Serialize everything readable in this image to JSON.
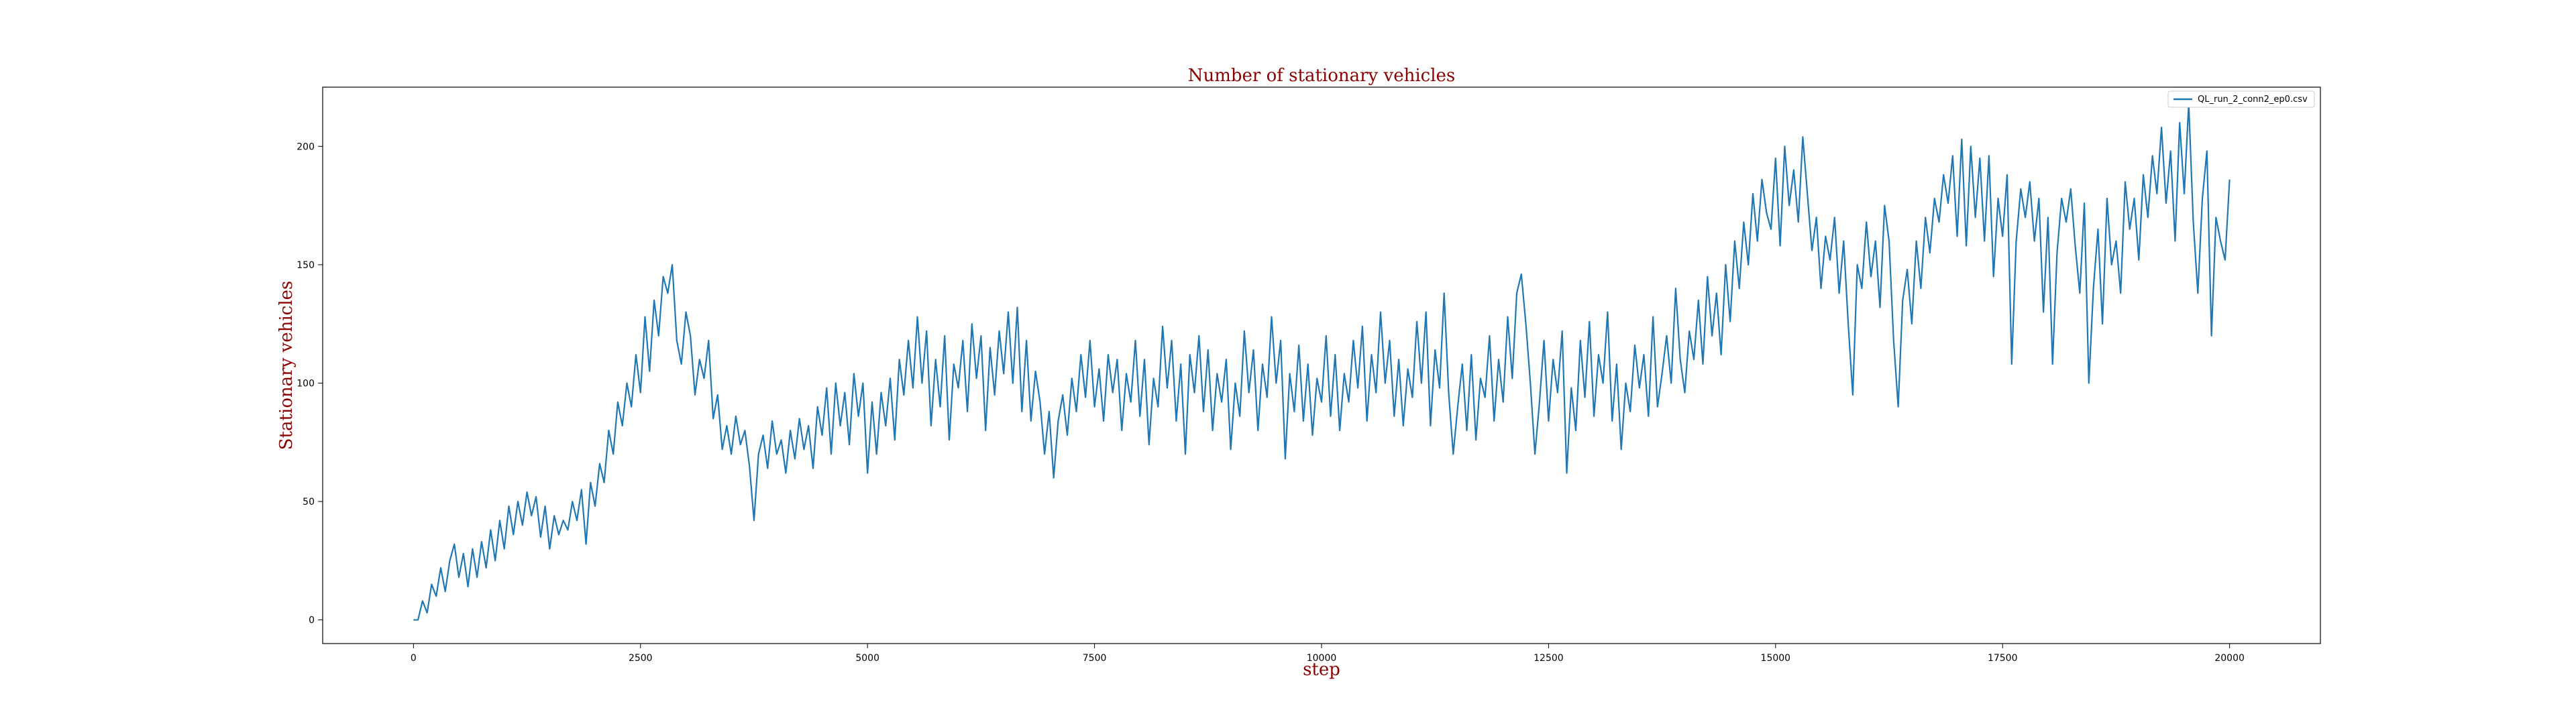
{
  "chart_data": {
    "type": "line",
    "title": "Number of stationary vehicles",
    "xlabel": "step",
    "ylabel": "Stationary vehicles",
    "xlim": [
      -1000,
      21000
    ],
    "ylim": [
      -10,
      225
    ],
    "xticks": [
      0,
      2500,
      5000,
      7500,
      10000,
      12500,
      15000,
      17500,
      20000
    ],
    "yticks": [
      0,
      50,
      100,
      150,
      200
    ],
    "grid": false,
    "legend_position": "top-right",
    "series": [
      {
        "name": "QL_run_2_conn2_ep0.csv",
        "color": "#1f77b4",
        "x": [
          0,
          50,
          100,
          150,
          200,
          250,
          300,
          350,
          400,
          450,
          500,
          550,
          600,
          650,
          700,
          750,
          800,
          850,
          900,
          950,
          1000,
          1050,
          1100,
          1150,
          1200,
          1250,
          1300,
          1350,
          1400,
          1450,
          1500,
          1550,
          1600,
          1650,
          1700,
          1750,
          1800,
          1850,
          1900,
          1950,
          2000,
          2050,
          2100,
          2150,
          2200,
          2250,
          2300,
          2350,
          2400,
          2450,
          2500,
          2550,
          2600,
          2650,
          2700,
          2750,
          2800,
          2850,
          2900,
          2950,
          3000,
          3050,
          3100,
          3150,
          3200,
          3250,
          3300,
          3350,
          3400,
          3450,
          3500,
          3550,
          3600,
          3650,
          3700,
          3750,
          3800,
          3850,
          3900,
          3950,
          4000,
          4050,
          4100,
          4150,
          4200,
          4250,
          4300,
          4350,
          4400,
          4450,
          4500,
          4550,
          4600,
          4650,
          4700,
          4750,
          4800,
          4850,
          4900,
          4950,
          5000,
          5050,
          5100,
          5150,
          5200,
          5250,
          5300,
          5350,
          5400,
          5450,
          5500,
          5550,
          5600,
          5650,
          5700,
          5750,
          5800,
          5850,
          5900,
          5950,
          6000,
          6050,
          6100,
          6150,
          6200,
          6250,
          6300,
          6350,
          6400,
          6450,
          6500,
          6550,
          6600,
          6650,
          6700,
          6750,
          6800,
          6850,
          6900,
          6950,
          7000,
          7050,
          7100,
          7150,
          7200,
          7250,
          7300,
          7350,
          7400,
          7450,
          7500,
          7550,
          7600,
          7650,
          7700,
          7750,
          7800,
          7850,
          7900,
          7950,
          8000,
          8050,
          8100,
          8150,
          8200,
          8250,
          8300,
          8350,
          8400,
          8450,
          8500,
          8550,
          8600,
          8650,
          8700,
          8750,
          8800,
          8850,
          8900,
          8950,
          9000,
          9050,
          9100,
          9150,
          9200,
          9250,
          9300,
          9350,
          9400,
          9450,
          9500,
          9550,
          9600,
          9650,
          9700,
          9750,
          9800,
          9850,
          9900,
          9950,
          10000,
          10050,
          10100,
          10150,
          10200,
          10250,
          10300,
          10350,
          10400,
          10450,
          10500,
          10550,
          10600,
          10650,
          10700,
          10750,
          10800,
          10850,
          10900,
          10950,
          11000,
          11050,
          11100,
          11150,
          11200,
          11250,
          11300,
          11350,
          11400,
          11450,
          11500,
          11550,
          11600,
          11650,
          11700,
          11750,
          11800,
          11850,
          11900,
          11950,
          12000,
          12050,
          12100,
          12150,
          12200,
          12250,
          12300,
          12350,
          12400,
          12450,
          12500,
          12550,
          12600,
          12650,
          12700,
          12750,
          12800,
          12850,
          12900,
          12950,
          13000,
          13050,
          13100,
          13150,
          13200,
          13250,
          13300,
          13350,
          13400,
          13450,
          13500,
          13550,
          13600,
          13650,
          13700,
          13750,
          13800,
          13850,
          13900,
          13950,
          14000,
          14050,
          14100,
          14150,
          14200,
          14250,
          14300,
          14350,
          14400,
          14450,
          14500,
          14550,
          14600,
          14650,
          14700,
          14750,
          14800,
          14850,
          14900,
          14950,
          15000,
          15050,
          15100,
          15150,
          15200,
          15250,
          15300,
          15350,
          15400,
          15450,
          15500,
          15550,
          15600,
          15650,
          15700,
          15750,
          15800,
          15850,
          15900,
          15950,
          16000,
          16050,
          16100,
          16150,
          16200,
          16250,
          16300,
          16350,
          16400,
          16450,
          16500,
          16550,
          16600,
          16650,
          16700,
          16750,
          16800,
          16850,
          16900,
          16950,
          17000,
          17050,
          17100,
          17150,
          17200,
          17250,
          17300,
          17350,
          17400,
          17450,
          17500,
          17550,
          17600,
          17650,
          17700,
          17750,
          17800,
          17850,
          17900,
          17950,
          18000,
          18050,
          18100,
          18150,
          18200,
          18250,
          18300,
          18350,
          18400,
          18450,
          18500,
          18550,
          18600,
          18650,
          18700,
          18750,
          18800,
          18850,
          18900,
          18950,
          19000,
          19050,
          19100,
          19150,
          19200,
          19250,
          19300,
          19350,
          19400,
          19450,
          19500,
          19550,
          19600,
          19650,
          19700,
          19750,
          19800,
          19850,
          19900,
          19950,
          20000
        ],
        "y": [
          0,
          0,
          8,
          3,
          15,
          10,
          22,
          12,
          25,
          32,
          18,
          28,
          14,
          30,
          18,
          33,
          22,
          38,
          25,
          42,
          30,
          48,
          36,
          50,
          40,
          54,
          44,
          52,
          35,
          48,
          30,
          44,
          36,
          42,
          38,
          50,
          42,
          55,
          32,
          58,
          48,
          66,
          58,
          80,
          70,
          92,
          82,
          100,
          90,
          112,
          96,
          128,
          105,
          135,
          120,
          145,
          138,
          150,
          118,
          108,
          130,
          120,
          95,
          110,
          102,
          118,
          85,
          95,
          72,
          82,
          70,
          86,
          74,
          80,
          65,
          42,
          70,
          78,
          64,
          84,
          70,
          76,
          62,
          80,
          68,
          85,
          72,
          82,
          64,
          90,
          78,
          98,
          70,
          100,
          82,
          96,
          74,
          104,
          86,
          100,
          62,
          92,
          70,
          96,
          82,
          102,
          76,
          110,
          95,
          118,
          98,
          128,
          100,
          122,
          82,
          110,
          90,
          120,
          76,
          108,
          98,
          118,
          88,
          125,
          102,
          120,
          80,
          115,
          95,
          122,
          104,
          130,
          100,
          132,
          88,
          118,
          84,
          105,
          92,
          70,
          88,
          60,
          84,
          95,
          78,
          102,
          88,
          112,
          94,
          118,
          90,
          106,
          84,
          112,
          96,
          110,
          80,
          104,
          92,
          118,
          86,
          110,
          74,
          102,
          90,
          124,
          98,
          118,
          84,
          108,
          70,
          112,
          96,
          120,
          88,
          114,
          80,
          104,
          92,
          110,
          72,
          100,
          86,
          122,
          96,
          114,
          80,
          108,
          94,
          128,
          100,
          118,
          68,
          104,
          88,
          116,
          84,
          108,
          78,
          102,
          92,
          120,
          86,
          112,
          80,
          104,
          92,
          118,
          98,
          124,
          84,
          112,
          96,
          130,
          100,
          118,
          86,
          110,
          82,
          106,
          94,
          126,
          100,
          130,
          82,
          114,
          98,
          138,
          96,
          70,
          90,
          108,
          80,
          112,
          76,
          102,
          94,
          120,
          84,
          110,
          92,
          128,
          102,
          138,
          146,
          125,
          100,
          70,
          92,
          118,
          84,
          110,
          96,
          122,
          62,
          98,
          80,
          118,
          94,
          126,
          86,
          112,
          100,
          130,
          84,
          108,
          72,
          100,
          88,
          116,
          98,
          112,
          86,
          128,
          90,
          104,
          120,
          100,
          140,
          110,
          96,
          122,
          110,
          135,
          108,
          145,
          120,
          138,
          112,
          150,
          126,
          160,
          140,
          168,
          150,
          180,
          160,
          186,
          172,
          165,
          195,
          158,
          200,
          175,
          190,
          168,
          204,
          180,
          156,
          170,
          140,
          162,
          152,
          170,
          138,
          160,
          125,
          95,
          150,
          140,
          168,
          145,
          160,
          132,
          175,
          160,
          118,
          90,
          135,
          148,
          125,
          160,
          140,
          170,
          155,
          178,
          168,
          188,
          176,
          196,
          162,
          203,
          158,
          200,
          170,
          195,
          160,
          196,
          145,
          178,
          162,
          188,
          108,
          160,
          182,
          170,
          185,
          160,
          178,
          130,
          170,
          108,
          155,
          178,
          168,
          182,
          158,
          138,
          176,
          100,
          140,
          165,
          125,
          178,
          150,
          160,
          138,
          185,
          165,
          178,
          152,
          188,
          170,
          196,
          180,
          208,
          176,
          198,
          160,
          210,
          180,
          218,
          168,
          138,
          178,
          198,
          120,
          170,
          160,
          152,
          186
        ]
      }
    ]
  }
}
